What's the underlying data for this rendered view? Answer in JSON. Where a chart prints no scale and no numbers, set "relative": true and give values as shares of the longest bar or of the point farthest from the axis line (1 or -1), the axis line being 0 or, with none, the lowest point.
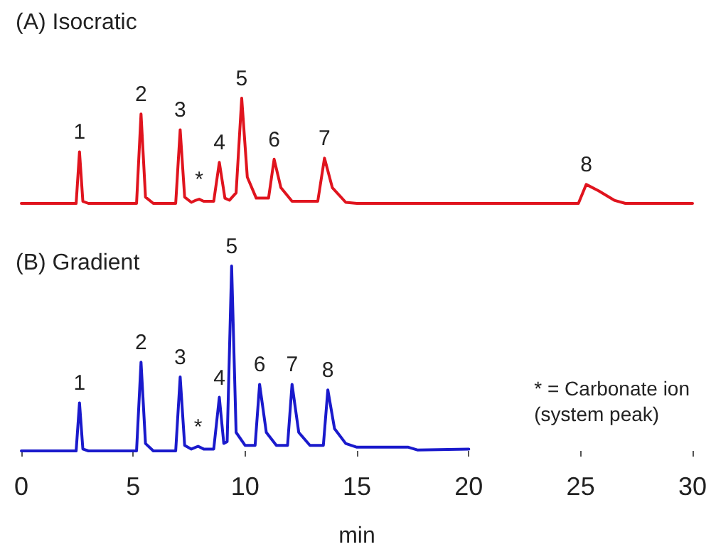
{
  "chart_data": [
    {
      "type": "line",
      "title": "(A) Isocratic",
      "relative": true,
      "xlim": [
        0,
        30
      ],
      "tick_labels": false,
      "marker": "none",
      "line_style": "solid",
      "x": [
        0,
        2.45,
        2.6,
        2.75,
        3,
        5.15,
        5.35,
        5.55,
        5.9,
        6.9,
        7.1,
        7.3,
        7.6,
        7.8,
        7.95,
        8.15,
        8.6,
        8.85,
        9.1,
        9.3,
        9.6,
        9.85,
        10.1,
        10.5,
        11.05,
        11.3,
        11.6,
        12.1,
        13.25,
        13.55,
        13.9,
        14.5,
        15,
        24.9,
        25.25,
        25.8,
        26.5,
        27,
        30
      ],
      "series": [
        {
          "color": "#e0141e",
          "values": [
            0,
            0,
            0.49,
            0.02,
            0,
            0,
            0.85,
            0.06,
            0,
            0,
            0.7,
            0.06,
            0.01,
            0.03,
            0.04,
            0.02,
            0.02,
            0.39,
            0.05,
            0.03,
            0.1,
            1,
            0.25,
            0.05,
            0.05,
            0.42,
            0.15,
            0.02,
            0.02,
            0.43,
            0.15,
            0.01,
            0,
            0,
            0.18,
            0.12,
            0.03,
            0,
            0
          ]
        }
      ],
      "annotations": [
        {
          "text": "1",
          "x": 2.6,
          "y": 0.49
        },
        {
          "text": "2",
          "x": 5.35,
          "y": 0.85
        },
        {
          "text": "3",
          "x": 7.1,
          "y": 0.7
        },
        {
          "text": "*",
          "x": 7.95,
          "y": 0.04
        },
        {
          "text": "4",
          "x": 8.85,
          "y": 0.39
        },
        {
          "text": "5",
          "x": 9.85,
          "y": 1
        },
        {
          "text": "6",
          "x": 11.3,
          "y": 0.42
        },
        {
          "text": "7",
          "x": 13.55,
          "y": 0.43
        },
        {
          "text": "8",
          "x": 25.25,
          "y": 0.18
        }
      ]
    },
    {
      "type": "line",
      "title": "(B) Gradient",
      "relative": true,
      "xlabel": "min",
      "xlim": [
        0,
        30
      ],
      "xticks": [
        0,
        5,
        10,
        15,
        20,
        25,
        30
      ],
      "tick_labels": "x",
      "marker": "none",
      "line_style": "solid",
      "x": [
        0,
        2.45,
        2.6,
        2.75,
        3,
        5.15,
        5.35,
        5.55,
        5.9,
        6.9,
        7.1,
        7.3,
        7.6,
        7.9,
        8.15,
        8.6,
        8.85,
        9.05,
        9.2,
        9.4,
        9.6,
        10,
        10.45,
        10.65,
        10.95,
        11.4,
        11.9,
        12.1,
        12.4,
        12.9,
        13.5,
        13.7,
        14,
        14.5,
        15,
        17.3,
        17.7,
        20
      ],
      "series": [
        {
          "color": "#1a1acc",
          "values": [
            0,
            0,
            0.26,
            0.01,
            0,
            0,
            0.48,
            0.04,
            0,
            0,
            0.4,
            0.03,
            0.01,
            0.025,
            0.01,
            0.01,
            0.29,
            0.04,
            0.05,
            1,
            0.1,
            0.03,
            0.03,
            0.36,
            0.1,
            0.03,
            0.03,
            0.36,
            0.1,
            0.03,
            0.03,
            0.33,
            0.12,
            0.04,
            0.02,
            0.02,
            0.005,
            0.01
          ]
        }
      ],
      "annotations": [
        {
          "text": "1",
          "x": 2.6,
          "y": 0.26
        },
        {
          "text": "2",
          "x": 5.35,
          "y": 0.48
        },
        {
          "text": "3",
          "x": 7.1,
          "y": 0.4
        },
        {
          "text": "*",
          "x": 7.9,
          "y": 0.025
        },
        {
          "text": "4",
          "x": 8.85,
          "y": 0.29
        },
        {
          "text": "5",
          "x": 9.4,
          "y": 1
        },
        {
          "text": "6",
          "x": 10.65,
          "y": 0.36
        },
        {
          "text": "7",
          "x": 12.1,
          "y": 0.36
        },
        {
          "text": "8",
          "x": 13.7,
          "y": 0.33
        },
        "* = Carbonate ion\n(system peak)"
      ]
    }
  ]
}
